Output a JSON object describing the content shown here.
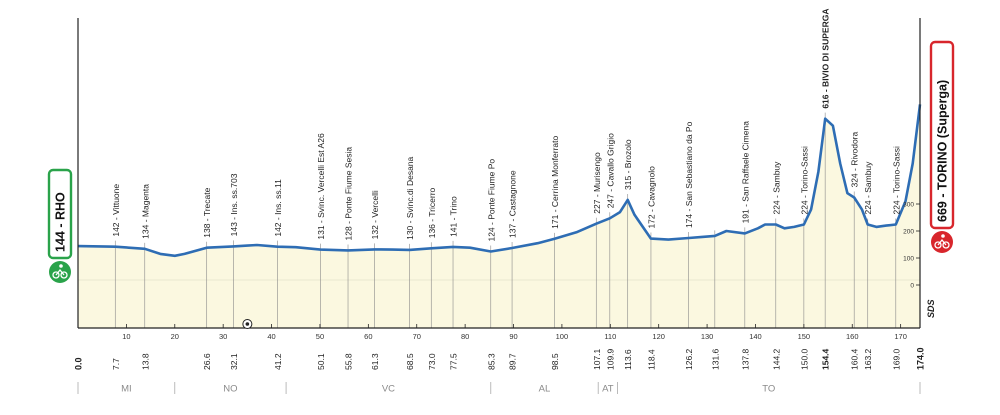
{
  "chart_data": {
    "type": "area",
    "x_unit": "km",
    "y_unit": "m",
    "xlim": [
      0,
      174
    ],
    "ylim": [
      0,
      700
    ],
    "x_ticks": [
      10,
      20,
      30,
      40,
      50,
      60,
      70,
      80,
      90,
      100,
      110,
      120,
      130,
      140,
      150,
      160,
      170
    ],
    "y_ticks": [
      0,
      100,
      200,
      300
    ],
    "start": {
      "label": "144 - RHO",
      "km": "0.0",
      "alt": 144
    },
    "finish": {
      "label": "669 - TORINO (Superga)",
      "km": "174.0",
      "alt": 669
    },
    "profile": [
      [
        0,
        144
      ],
      [
        7.7,
        142
      ],
      [
        13.8,
        134
      ],
      [
        17,
        115
      ],
      [
        20,
        108
      ],
      [
        22,
        115
      ],
      [
        26.6,
        138
      ],
      [
        32.1,
        143
      ],
      [
        35,
        146
      ],
      [
        37,
        148
      ],
      [
        41.2,
        142
      ],
      [
        45,
        140
      ],
      [
        50.1,
        131
      ],
      [
        55.8,
        128
      ],
      [
        61.3,
        132
      ],
      [
        65,
        131
      ],
      [
        68.5,
        130
      ],
      [
        73,
        136
      ],
      [
        77.5,
        141
      ],
      [
        81,
        138
      ],
      [
        85.3,
        124
      ],
      [
        89.7,
        137
      ],
      [
        95,
        155
      ],
      [
        98.5,
        171
      ],
      [
        103,
        195
      ],
      [
        107.1,
        227
      ],
      [
        109.9,
        247
      ],
      [
        112,
        270
      ],
      [
        113.6,
        315
      ],
      [
        115,
        260
      ],
      [
        118.4,
        172
      ],
      [
        122,
        168
      ],
      [
        126.2,
        174
      ],
      [
        129,
        178
      ],
      [
        131.6,
        182
      ],
      [
        134,
        200
      ],
      [
        137.8,
        191
      ],
      [
        140.5,
        210
      ],
      [
        142,
        224
      ],
      [
        144.2,
        224
      ],
      [
        146,
        210
      ],
      [
        148,
        215
      ],
      [
        150,
        224
      ],
      [
        151.5,
        280
      ],
      [
        153,
        420
      ],
      [
        154.4,
        616
      ],
      [
        156,
        590
      ],
      [
        157.5,
        450
      ],
      [
        159,
        340
      ],
      [
        160.4,
        324
      ],
      [
        162,
        280
      ],
      [
        163.2,
        224
      ],
      [
        165,
        215
      ],
      [
        167,
        220
      ],
      [
        169,
        224
      ],
      [
        171,
        310
      ],
      [
        172.5,
        450
      ],
      [
        174,
        669
      ]
    ],
    "waypoints": [
      {
        "km": "7.7",
        "alt": "142",
        "name": "Vittuone"
      },
      {
        "km": "13.8",
        "alt": "134",
        "name": "Magenta"
      },
      {
        "km": "26.6",
        "alt": "138",
        "name": "Trecate"
      },
      {
        "km": "32.1",
        "alt": "143",
        "name": "Ins. ss.703"
      },
      {
        "km": "41.2",
        "alt": "142",
        "name": "Ins. ss.11"
      },
      {
        "km": "50.1",
        "alt": "131",
        "name": "Svinc. Vercelli Est A26"
      },
      {
        "km": "55.8",
        "alt": "128",
        "name": "Ponte Fiume Sesia"
      },
      {
        "km": "61.3",
        "alt": "132",
        "name": "Vercelli"
      },
      {
        "km": "68.5",
        "alt": "130",
        "name": "Svinc.di Desana"
      },
      {
        "km": "73.0",
        "alt": "136",
        "name": "Tricerro"
      },
      {
        "km": "77.5",
        "alt": "141",
        "name": "Trino"
      },
      {
        "km": "85.3",
        "alt": "124",
        "name": "Ponte Fiume Po"
      },
      {
        "km": "89.7",
        "alt": "137",
        "name": "Castagnone"
      },
      {
        "km": "98.5",
        "alt": "171",
        "name": "Cerrina Monferrato"
      },
      {
        "km": "107.1",
        "alt": "227",
        "name": "Murisengo"
      },
      {
        "km": "109.9",
        "alt": "247",
        "name": "Cavallo Grigio"
      },
      {
        "km": "113.6",
        "alt": "315",
        "name": "Brozolo"
      },
      {
        "km": "118.4",
        "alt": "172",
        "name": "Cavagnolo"
      },
      {
        "km": "126.2",
        "alt": "174",
        "name": "San Sebastiano da Po"
      },
      {
        "km": "131.6",
        "alt": "",
        "name": ""
      },
      {
        "km": "137.8",
        "alt": "191",
        "name": "San Raffaele Cimena"
      },
      {
        "km": "144.2",
        "alt": "224",
        "name": "Sambuy"
      },
      {
        "km": "150.0",
        "alt": "224",
        "name": "Torino-Sassi"
      },
      {
        "km": "154.4",
        "alt": "616",
        "name": "BIVIO DI SUPERGA",
        "bold": true
      },
      {
        "km": "160.4",
        "alt": "324",
        "name": "Rivodora"
      },
      {
        "km": "163.2",
        "alt": "224",
        "name": "Sambuy"
      },
      {
        "km": "169.0",
        "alt": "224",
        "name": "Torino-Sassi"
      }
    ],
    "regions": [
      {
        "label": "MI",
        "from": 0,
        "to": 20
      },
      {
        "label": "NO",
        "from": 20,
        "to": 43
      },
      {
        "label": "VC",
        "from": 43,
        "to": 85.3
      },
      {
        "label": "AL",
        "from": 85.3,
        "to": 107.5
      },
      {
        "label": "AT",
        "from": 107.5,
        "to": 111.5
      },
      {
        "label": "TO",
        "from": 111.5,
        "to": 174
      }
    ],
    "logo": "SDS",
    "colors": {
      "profile_line": "#2e6db4",
      "area_fill": "#fbf8e0",
      "start_badge": "#2aa34a",
      "finish_badge": "#d8262c",
      "axis": "#222222",
      "guide": "#8a8a8a",
      "region_text": "#8a8a8a"
    },
    "icons": [
      "start-cyclist-icon",
      "finish-cyclist-icon",
      "sprint-target-icon"
    ]
  }
}
